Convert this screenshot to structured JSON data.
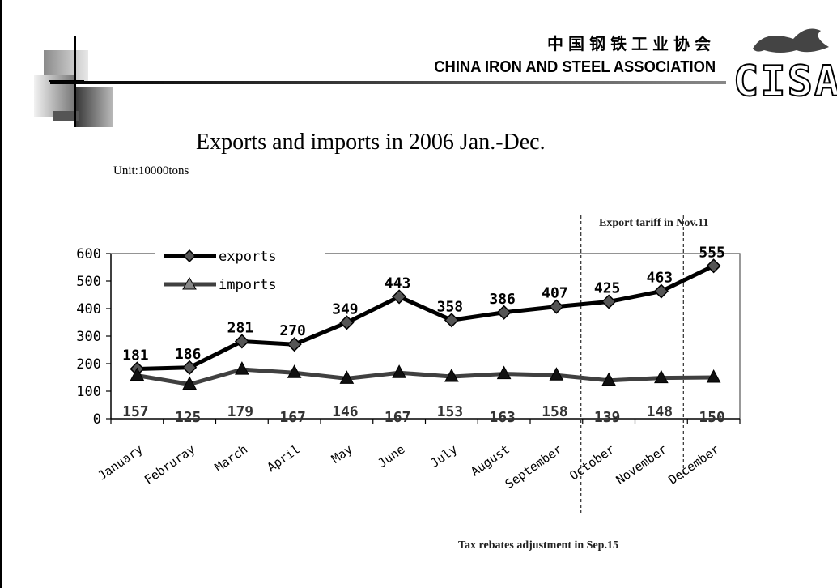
{
  "header": {
    "org_cn": "中国钢铁工业协会",
    "org_en": "CHINA IRON AND STEEL ASSOCIATION",
    "logo_text": "CISA"
  },
  "title": "Exports and imports in 2006 Jan.-Dec.",
  "unit": "Unit:10000tons",
  "annotations": {
    "export_tariff": "Export tariff  in Nov.11",
    "tax_rebates": "Tax rebates adjustment in Sep.15"
  },
  "chart_data": {
    "type": "line",
    "title": "Exports and imports in 2006 Jan.-Dec.",
    "xlabel": "",
    "ylabel": "",
    "categories": [
      "January",
      "Februray",
      "March",
      "April",
      "May",
      "June",
      "July",
      "August",
      "September",
      "October",
      "November",
      "December"
    ],
    "series": [
      {
        "name": "exports",
        "marker": "diamond",
        "color": "#000000",
        "values": [
          181,
          186,
          281,
          270,
          349,
          443,
          358,
          386,
          407,
          425,
          463,
          555
        ]
      },
      {
        "name": "imports",
        "marker": "triangle",
        "color": "#404040",
        "values": [
          157,
          125,
          179,
          167,
          146,
          167,
          153,
          163,
          158,
          139,
          148,
          150
        ]
      }
    ],
    "ylim": [
      0,
      600
    ],
    "yticks": [
      0,
      100,
      200,
      300,
      400,
      500,
      600
    ],
    "legend_position": "top-left",
    "grid": false
  }
}
